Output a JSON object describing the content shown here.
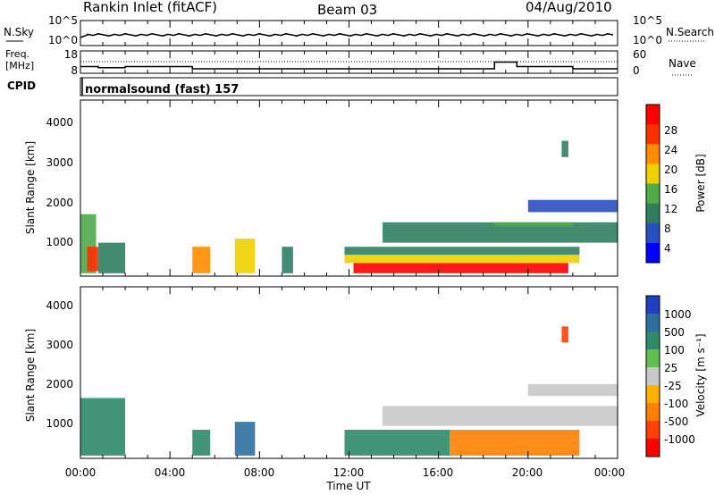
{
  "header": {
    "station": "Rankin Inlet (fitACF)",
    "beam": "Beam 03",
    "date": "04/Aug/2010"
  },
  "noise_panel": {
    "left_label": "N.Sky",
    "right_label": "N.Search",
    "left_ticks": [
      "10^5",
      "10^0"
    ],
    "right_ticks": [
      "10^5",
      "10^0"
    ]
  },
  "freq_panel": {
    "left_label_1": "Freq.",
    "left_label_2": "[MHz]",
    "cpid_label": "CPID",
    "left_ticks": [
      "18",
      "8"
    ],
    "right_label": "Nave",
    "right_ticks": [
      "60",
      "0"
    ]
  },
  "cpid_panel": {
    "text": "normalsound (fast) 157"
  },
  "power_panel": {
    "ylabel": "Slant Range [km]",
    "yticks": [
      "4000",
      "3000",
      "2000",
      "1000"
    ],
    "colorbar_label": "Power [dB]",
    "colorbar_ticks": [
      "28",
      "24",
      "20",
      "16",
      "12",
      "8",
      "4"
    ],
    "colors": [
      "#0000ff",
      "#2b4fbf",
      "#2f7f5f",
      "#4faa4a",
      "#f0d000",
      "#ff8c00",
      "#ff3000",
      "#ff0000"
    ]
  },
  "velocity_panel": {
    "ylabel": "Slant Range [km]",
    "yticks": [
      "4000",
      "3000",
      "2000",
      "1000"
    ],
    "colorbar_label": "Velocity [m s⁻¹]",
    "colorbar_ticks": [
      "1000",
      "500",
      "100",
      "25",
      "-25",
      "-100",
      "-500",
      "-1000"
    ],
    "colors": [
      "#1f3fbf",
      "#2f6fa0",
      "#2f8a6a",
      "#5fc050",
      "#c8c8c8",
      "#ffb000",
      "#ff8000",
      "#ff4000",
      "#ff0000"
    ]
  },
  "xaxis": {
    "ticks": [
      "00:00",
      "04:00",
      "08:00",
      "12:00",
      "16:00",
      "20:00",
      "00:00"
    ],
    "label": "Time UT"
  },
  "chart_data": {
    "type": "heatmap",
    "x_range_hours": [
      0,
      24
    ],
    "y_range_km": [
      180,
      4500
    ],
    "power_db": [
      {
        "t0": 0.0,
        "t1": 0.7,
        "r0": 250,
        "r1": 1700,
        "value": 12
      },
      {
        "t0": 0.3,
        "t1": 0.8,
        "r0": 300,
        "r1": 900,
        "value": 24
      },
      {
        "t0": 0.8,
        "t1": 2.0,
        "r0": 250,
        "r1": 1000,
        "value": 8
      },
      {
        "t0": 5.0,
        "t1": 5.8,
        "r0": 250,
        "r1": 900,
        "value": 20
      },
      {
        "t0": 6.9,
        "t1": 7.8,
        "r0": 250,
        "r1": 1100,
        "value": 16
      },
      {
        "t0": 9.0,
        "t1": 9.5,
        "r0": 250,
        "r1": 900,
        "value": 8
      },
      {
        "t0": 11.8,
        "t1": 22.3,
        "r0": 700,
        "r1": 900,
        "value": 8
      },
      {
        "t0": 11.8,
        "t1": 22.3,
        "r0": 500,
        "r1": 700,
        "value": 16
      },
      {
        "t0": 12.2,
        "t1": 21.8,
        "r0": 250,
        "r1": 500,
        "value": 28
      },
      {
        "t0": 13.5,
        "t1": 24.0,
        "r0": 1000,
        "r1": 1500,
        "value": 8
      },
      {
        "t0": 18.5,
        "t1": 22.0,
        "r0": 1400,
        "r1": 1500,
        "value": 12
      },
      {
        "t0": 20.0,
        "t1": 24.0,
        "r0": 1750,
        "r1": 2050,
        "value": 4
      },
      {
        "t0": 21.5,
        "t1": 21.8,
        "r0": 3100,
        "r1": 3500,
        "value": 8
      }
    ],
    "velocity_ms": [
      {
        "t0": 0.0,
        "t1": 2.0,
        "r0": 250,
        "r1": 1700,
        "value": 100
      },
      {
        "t0": 5.0,
        "t1": 5.8,
        "r0": 250,
        "r1": 900,
        "value": 100
      },
      {
        "t0": 6.9,
        "t1": 7.8,
        "r0": 250,
        "r1": 1100,
        "value": 500
      },
      {
        "t0": 11.8,
        "t1": 16.5,
        "r0": 250,
        "r1": 900,
        "value": 100
      },
      {
        "t0": 16.5,
        "t1": 22.3,
        "r0": 250,
        "r1": 900,
        "value": -100
      },
      {
        "t0": 13.5,
        "t1": 24.0,
        "r0": 1000,
        "r1": 1500,
        "value": 0
      },
      {
        "t0": 20.0,
        "t1": 24.0,
        "r0": 1750,
        "r1": 2050,
        "value": 0
      },
      {
        "t0": 21.5,
        "t1": 21.8,
        "r0": 3100,
        "r1": 3500,
        "value": -500
      }
    ],
    "freq_mhz": [
      {
        "t0": 0.0,
        "t1": 0.8,
        "value": 11
      },
      {
        "t0": 0.8,
        "t1": 2.0,
        "value": 10.5
      },
      {
        "t0": 2.0,
        "t1": 5.0,
        "value": 11
      },
      {
        "t0": 5.0,
        "t1": 11.5,
        "value": 10
      },
      {
        "t0": 11.5,
        "t1": 18.5,
        "value": 10
      },
      {
        "t0": 18.5,
        "t1": 19.5,
        "value": 13
      },
      {
        "t0": 19.5,
        "t1": 22.0,
        "value": 11
      },
      {
        "t0": 22.0,
        "t1": 24.0,
        "value": 10
      }
    ]
  }
}
